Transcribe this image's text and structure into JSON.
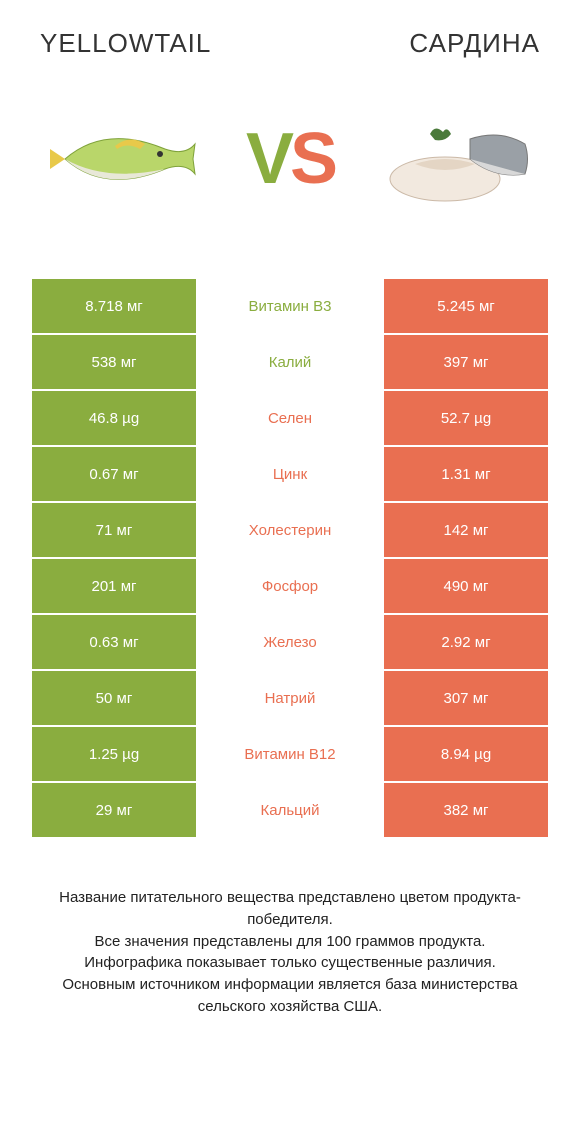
{
  "colors": {
    "green": "#8aad3f",
    "orange": "#e96f51",
    "neutral": "#e8e8e8",
    "mid_text_green": "#8aad3f",
    "mid_text_orange": "#e96f51"
  },
  "header": {
    "left_title": "YELLOWTAIL",
    "right_title": "САРДИНА"
  },
  "vs": {
    "v": "V",
    "s": "S"
  },
  "rows": [
    {
      "nutrient": "Витамин B3",
      "left": "8.718 мг",
      "right": "5.245 мг",
      "winner": "left"
    },
    {
      "nutrient": "Калий",
      "left": "538 мг",
      "right": "397 мг",
      "winner": "left"
    },
    {
      "nutrient": "Селен",
      "left": "46.8 µg",
      "right": "52.7 µg",
      "winner": "right"
    },
    {
      "nutrient": "Цинк",
      "left": "0.67 мг",
      "right": "1.31 мг",
      "winner": "right"
    },
    {
      "nutrient": "Холестерин",
      "left": "71 мг",
      "right": "142 мг",
      "winner": "right"
    },
    {
      "nutrient": "Фосфор",
      "left": "201 мг",
      "right": "490 мг",
      "winner": "right"
    },
    {
      "nutrient": "Железо",
      "left": "0.63 мг",
      "right": "2.92 мг",
      "winner": "right"
    },
    {
      "nutrient": "Натрий",
      "left": "50 мг",
      "right": "307 мг",
      "winner": "right"
    },
    {
      "nutrient": "Витамин B12",
      "left": "1.25 µg",
      "right": "8.94 µg",
      "winner": "right"
    },
    {
      "nutrient": "Кальций",
      "left": "29 мг",
      "right": "382 мг",
      "winner": "right"
    }
  ],
  "footer": {
    "line1": "Название питательного вещества представлено цветом продукта-победителя.",
    "line2": "Все значения представлены для 100 граммов продукта.",
    "line3": "Инфографика показывает только существенные различия.",
    "line4": "Основным источником информации является база министерства сельского хозяйства США."
  }
}
